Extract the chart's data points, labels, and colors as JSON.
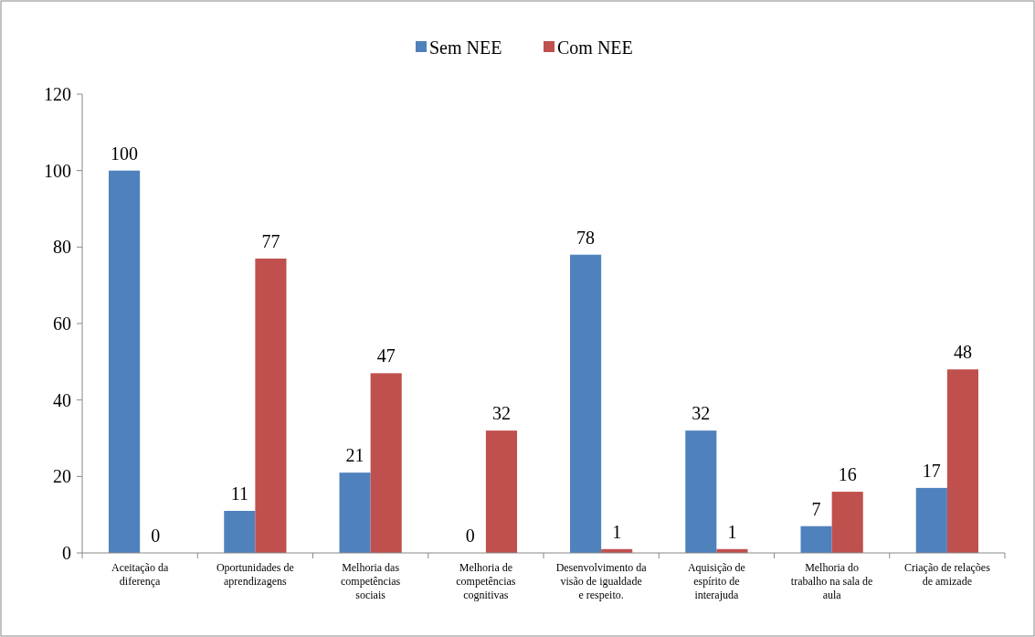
{
  "chart_data": {
    "type": "bar",
    "categories": [
      "Aceitação da diferença",
      "Oportunidades de aprendizagens",
      "Melhoria das competências sociais",
      "Melhoria de competências cognitivas",
      "Desenvolvimento da visão de igualdade e respeito.",
      "Aquisição de espírito de interajuda",
      "Melhoria do trabalho na sala de aula",
      "Criação de relações de amizade"
    ],
    "series": [
      {
        "name": "Sem NEE",
        "color": "#4f81bd",
        "values": [
          100,
          11,
          21,
          0,
          78,
          32,
          7,
          17
        ]
      },
      {
        "name": "Com NEE",
        "color": "#c0504d",
        "values": [
          0,
          77,
          47,
          32,
          1,
          1,
          16,
          48
        ]
      }
    ],
    "ylim": [
      0,
      120
    ],
    "yticks": [
      0,
      20,
      40,
      60,
      80,
      100,
      120
    ],
    "data_labels": true,
    "legend": "top",
    "grid": false
  }
}
